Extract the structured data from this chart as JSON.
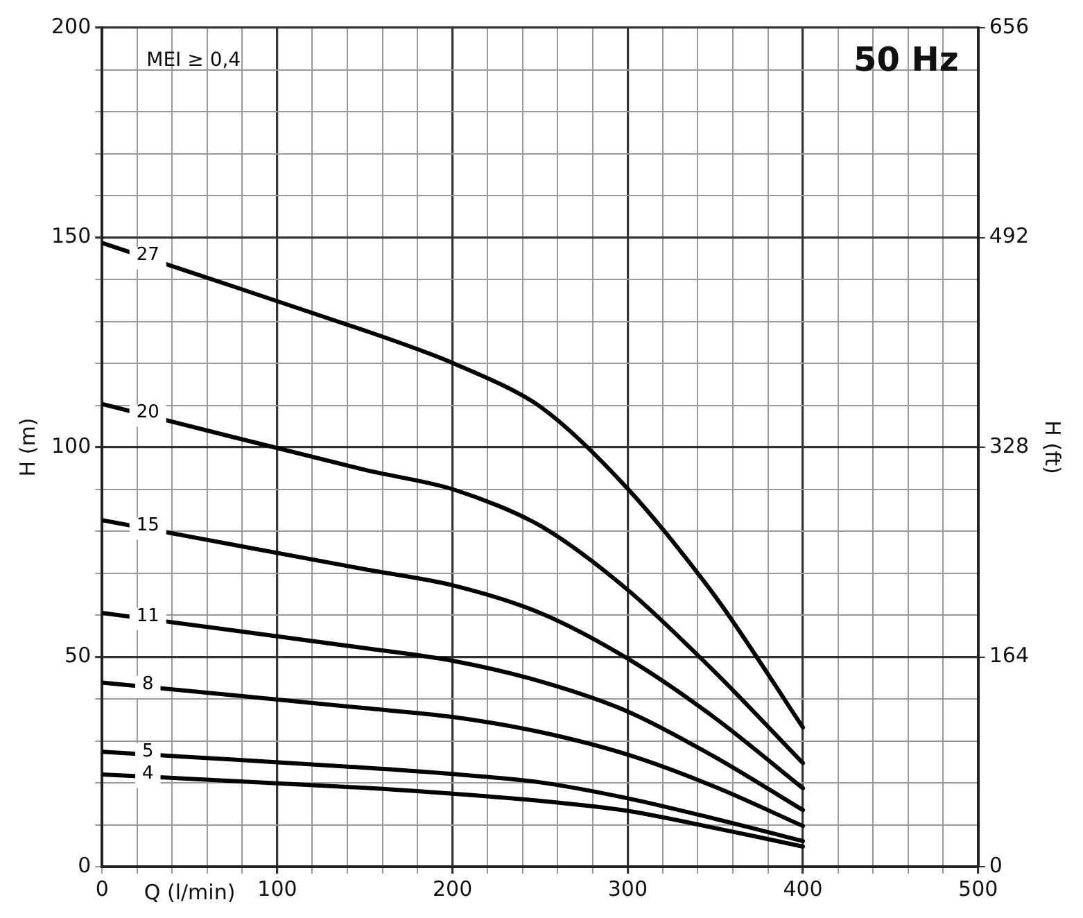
{
  "chart_data": {
    "type": "line",
    "xlabel": "Q (l/min)",
    "ylabel": "H (m)",
    "y2label": "H (ft)",
    "annotations": [
      "MEI ≥ 0,4",
      "50 Hz"
    ],
    "xlim": [
      0,
      500
    ],
    "xticks": [
      0,
      {
        "value": 20,
        "label": null
      },
      {
        "value": 40,
        "label": null
      },
      {
        "value": 60,
        "label": null
      },
      {
        "value": 80,
        "label": null
      },
      100,
      {
        "value": 120,
        "label": null
      },
      {
        "value": 140,
        "label": null
      },
      {
        "value": 160,
        "label": null
      },
      {
        "value": 180,
        "label": null
      },
      200,
      {
        "value": 220,
        "label": null
      },
      {
        "value": 240,
        "label": null
      },
      {
        "value": 260,
        "label": null
      },
      {
        "value": 280,
        "label": null
      },
      300,
      {
        "value": 320,
        "label": null
      },
      {
        "value": 340,
        "label": null
      },
      {
        "value": 360,
        "label": null
      },
      {
        "value": 380,
        "label": null
      },
      400,
      {
        "value": 420,
        "label": null
      },
      {
        "value": 440,
        "label": null
      },
      {
        "value": 460,
        "label": null
      },
      {
        "value": 480,
        "label": null
      },
      500
    ],
    "ylim": [
      0,
      200
    ],
    "yticks": [
      0,
      {
        "value": 10,
        "label": null
      },
      {
        "value": 20,
        "label": null
      },
      {
        "value": 30,
        "label": null
      },
      {
        "value": 40,
        "label": null
      },
      50,
      {
        "value": 60,
        "label": null
      },
      {
        "value": 70,
        "label": null
      },
      {
        "value": 80,
        "label": null
      },
      {
        "value": 90,
        "label": null
      },
      100,
      {
        "value": 110,
        "label": null
      },
      {
        "value": 120,
        "label": null
      },
      {
        "value": 130,
        "label": null
      },
      {
        "value": 140,
        "label": null
      },
      150,
      {
        "value": 160,
        "label": null
      },
      {
        "value": 170,
        "label": null
      },
      {
        "value": 180,
        "label": null
      },
      {
        "value": 190,
        "label": null
      },
      200
    ],
    "y2lim": [
      0,
      656
    ],
    "y2ticks": [
      0,
      164,
      328,
      492,
      656
    ],
    "grid": true,
    "legend": false,
    "marker": "none",
    "line_style": "solid",
    "x": [
      0,
      150,
      200,
      250,
      300,
      350,
      400
    ],
    "series": [
      {
        "name": "27",
        "color": "#000000",
        "values": [
          148.7,
          127.8,
          120.1,
          109.7,
          90.1,
          64.4,
          33.2
        ]
      },
      {
        "name": "20",
        "color": "#000000",
        "values": [
          110.3,
          94.6,
          90,
          81.3,
          66,
          46.3,
          24.7
        ]
      },
      {
        "name": "15",
        "color": "#000000",
        "values": [
          82.6,
          70.9,
          67.1,
          60.5,
          49.6,
          35.4,
          18.7
        ]
      },
      {
        "name": "11",
        "color": "#000000",
        "values": [
          60.5,
          52.1,
          49.1,
          44.2,
          37,
          26.1,
          13.5
        ]
      },
      {
        "name": "8",
        "color": "#000000",
        "values": [
          43.9,
          37.8,
          35.7,
          32.1,
          26.7,
          19,
          9.7
        ]
      },
      {
        "name": "5",
        "color": "#000000",
        "values": [
          27.4,
          23.6,
          22.1,
          20.1,
          16.3,
          11.4,
          6.1
        ]
      },
      {
        "name": "4",
        "color": "#000000",
        "values": [
          22,
          18.8,
          17.4,
          15.7,
          13.3,
          9.2,
          4.8
        ]
      }
    ]
  }
}
